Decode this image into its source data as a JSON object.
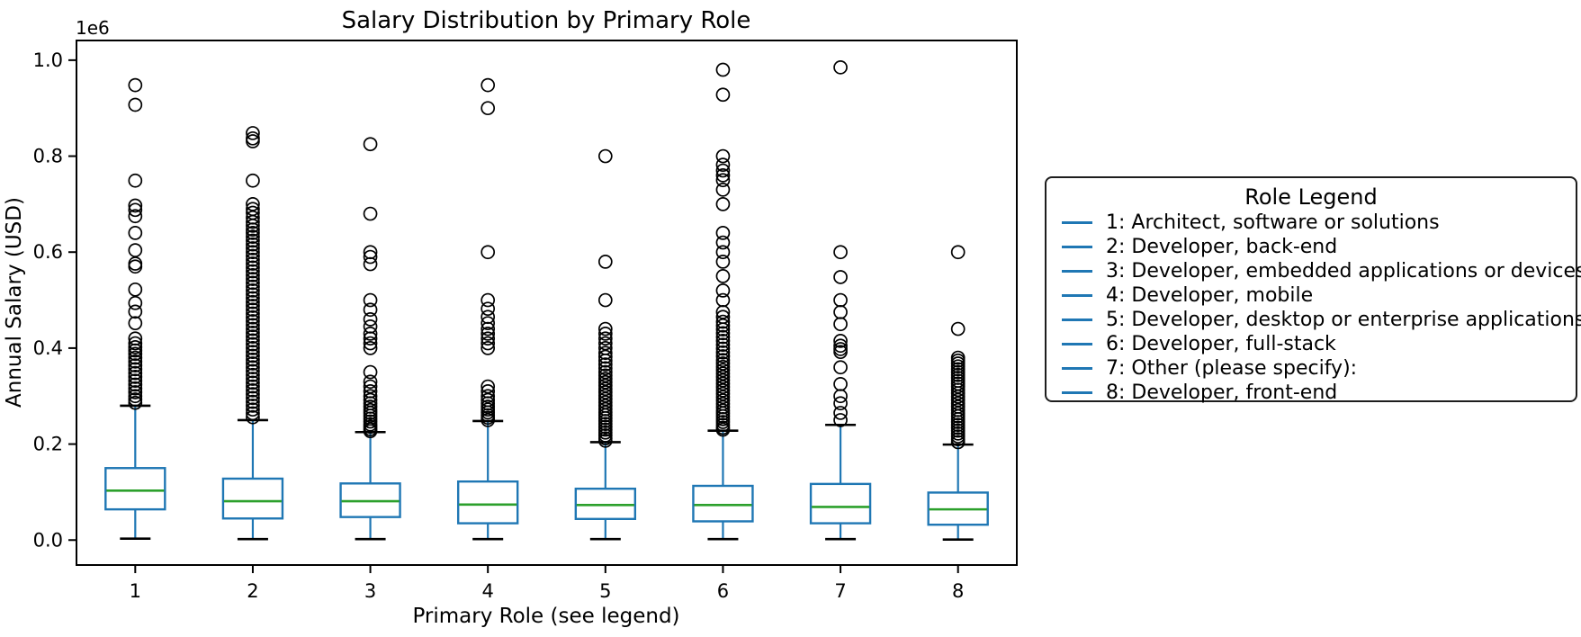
{
  "figure": {
    "title": "Salary Distribution by Primary Role",
    "xlabel": "Primary Role (see legend)",
    "ylabel": "Annual Salary (USD)",
    "offset_text": "1e6"
  },
  "colors": {
    "box": "#1f77b4",
    "median": "#2ca02c",
    "cap": "#000000",
    "flier": "#000000",
    "text": "#000000",
    "spine": "#000000",
    "background": "#ffffff"
  },
  "chart_data": {
    "type": "boxplot",
    "title": "Salary Distribution by Primary Role",
    "xlabel": "Primary Role (see legend)",
    "ylabel": "Annual Salary (USD)",
    "offset_text": "1e6",
    "grid": false,
    "legend_position": "right",
    "categories": [
      "1",
      "2",
      "3",
      "4",
      "5",
      "6",
      "7",
      "8"
    ],
    "ylim": [
      -52000,
      1041000
    ],
    "yticks": {
      "values": [
        0,
        200000,
        400000,
        600000,
        800000,
        1000000
      ],
      "labels": [
        "0.0",
        "0.2",
        "0.4",
        "0.6",
        "0.8",
        "1.0"
      ]
    },
    "legend": {
      "title": "Role Legend",
      "items": [
        {
          "label": "1: Architect, software or solutions"
        },
        {
          "label": "2: Developer, back-end"
        },
        {
          "label": "3: Developer, embedded applications or devices"
        },
        {
          "label": "4: Developer, mobile"
        },
        {
          "label": "5: Developer, desktop or enterprise applications"
        },
        {
          "label": "6: Developer, full-stack"
        },
        {
          "label": "7: Other (please specify):"
        },
        {
          "label": "8: Developer, front-end"
        }
      ]
    },
    "series": [
      {
        "name": "1",
        "role": "Architect, software or solutions",
        "whislo": 3000,
        "q1": 64000,
        "med": 103000,
        "q3": 150000,
        "whishi": 280000,
        "fliers": [
          948000,
          907000,
          749000,
          697000,
          688000,
          675000,
          640000,
          604000,
          576000,
          570000,
          522000,
          494000,
          476000,
          452000,
          420000,
          410000,
          402000,
          395000,
          388000,
          380000,
          372000,
          364000,
          356000,
          348000,
          340000,
          332000,
          324000,
          316000,
          308000,
          300000,
          293000,
          286000
        ]
      },
      {
        "name": "2",
        "role": "Developer, back-end",
        "whislo": 2000,
        "q1": 45000,
        "med": 81000,
        "q3": 128000,
        "whishi": 250000,
        "fliers": [
          848000,
          837000,
          831000,
          749000,
          700000,
          690000,
          682000,
          672000,
          663000,
          655000,
          647000,
          640000,
          632000,
          624000,
          616000,
          608000,
          600000,
          592000,
          584000,
          576000,
          568000,
          560000,
          552000,
          544000,
          536000,
          528000,
          520000,
          512000,
          504000,
          496000,
          488000,
          480000,
          472000,
          464000,
          456000,
          448000,
          440000,
          432000,
          424000,
          416000,
          408000,
          400000,
          392000,
          384000,
          376000,
          368000,
          360000,
          352000,
          344000,
          336000,
          328000,
          320000,
          312000,
          304000,
          296000,
          288000,
          280000,
          272000,
          264000,
          256000
        ]
      },
      {
        "name": "3",
        "role": "Developer, embedded applications or devices",
        "whislo": 2000,
        "q1": 48000,
        "med": 81000,
        "q3": 118000,
        "whishi": 225000,
        "fliers": [
          825000,
          680000,
          600000,
          590000,
          575000,
          500000,
          480000,
          460000,
          445000,
          430000,
          420000,
          410000,
          400000,
          350000,
          330000,
          320000,
          310000,
          300000,
          292000,
          285000,
          278000,
          271000,
          265000,
          259000,
          253000,
          247000,
          241000,
          236000,
          231000,
          227000
        ]
      },
      {
        "name": "4",
        "role": "Developer, mobile",
        "whislo": 2000,
        "q1": 35000,
        "med": 74000,
        "q3": 122000,
        "whishi": 248000,
        "fliers": [
          948000,
          900000,
          600000,
          500000,
          482000,
          465000,
          452000,
          440000,
          430000,
          420000,
          410000,
          400000,
          320000,
          310000,
          300000,
          292000,
          285000,
          278000,
          272000,
          266000,
          260000,
          255000,
          250000
        ]
      },
      {
        "name": "5",
        "role": "Developer, desktop or enterprise applications",
        "whislo": 2000,
        "q1": 44000,
        "med": 73000,
        "q3": 107000,
        "whishi": 204000,
        "fliers": [
          800000,
          580000,
          500000,
          440000,
          430000,
          420000,
          410000,
          400000,
          390000,
          382000,
          374000,
          366000,
          358000,
          350000,
          343000,
          336000,
          329000,
          322000,
          315000,
          308000,
          301000,
          294000,
          287000,
          280000,
          273000,
          266000,
          260000,
          254000,
          248000,
          242000,
          236000,
          230000,
          224000,
          218000,
          212000,
          207000
        ]
      },
      {
        "name": "6",
        "role": "Developer, full-stack",
        "whislo": 2000,
        "q1": 39000,
        "med": 73000,
        "q3": 113000,
        "whishi": 228000,
        "fliers": [
          980000,
          928000,
          800000,
          782000,
          770000,
          760000,
          750000,
          730000,
          700000,
          640000,
          620000,
          600000,
          580000,
          550000,
          520000,
          500000,
          475000,
          465000,
          455000,
          447000,
          439000,
          431000,
          423000,
          415000,
          407000,
          399000,
          391000,
          383000,
          375000,
          368000,
          361000,
          354000,
          347000,
          340000,
          333000,
          326000,
          319000,
          312000,
          305000,
          298000,
          291000,
          284000,
          277000,
          270000,
          264000,
          258000,
          252000,
          246000,
          240000,
          234000,
          230000
        ]
      },
      {
        "name": "7",
        "role": "Other (please specify):",
        "whislo": 2000,
        "q1": 35000,
        "med": 69000,
        "q3": 117000,
        "whishi": 240000,
        "fliers": [
          985000,
          600000,
          548000,
          500000,
          475000,
          450000,
          415000,
          405000,
          398000,
          392000,
          360000,
          325000,
          300000,
          285000,
          265000,
          250000
        ]
      },
      {
        "name": "8",
        "role": "Developer, front-end",
        "whislo": 1000,
        "q1": 32000,
        "med": 64000,
        "q3": 99000,
        "whishi": 199000,
        "fliers": [
          600000,
          440000,
          380000,
          374000,
          368000,
          362000,
          356000,
          350000,
          344000,
          338000,
          332000,
          326000,
          320000,
          313000,
          306000,
          299000,
          292000,
          285000,
          278000,
          271000,
          264000,
          258000,
          252000,
          246000,
          240000,
          234000,
          228000,
          222000,
          216000,
          210000,
          204000
        ]
      }
    ]
  }
}
